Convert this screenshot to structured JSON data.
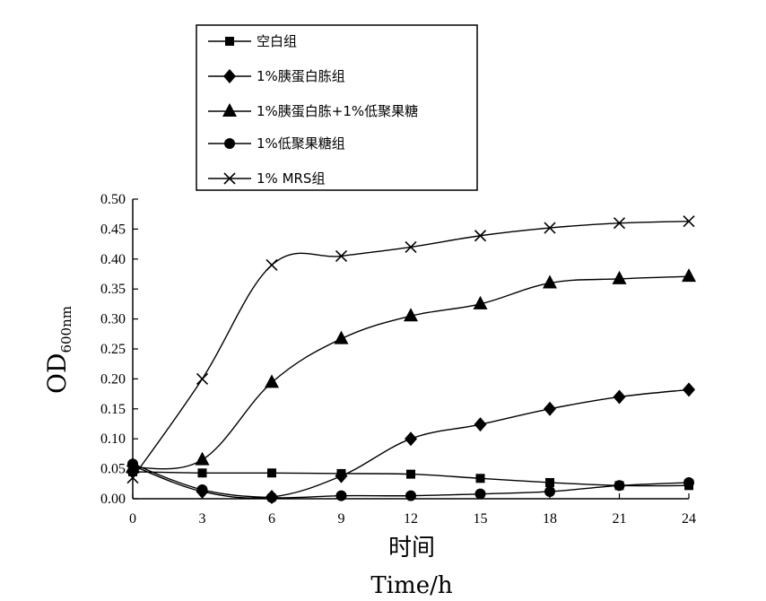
{
  "chart_data": {
    "type": "line",
    "xlabel_cn": "时间",
    "xlabel_en": "Time/h",
    "ylabel_main": "OD",
    "ylabel_sub": "600nm",
    "x": [
      0,
      3,
      6,
      9,
      12,
      15,
      18,
      21,
      24
    ],
    "x_tick_labels": [
      "0",
      "3",
      "6",
      "9",
      "12",
      "15",
      "18",
      "21",
      "24"
    ],
    "y_tick_labels": [
      "0.00",
      "0.05",
      "0.10",
      "0.15",
      "0.20",
      "0.25",
      "0.30",
      "0.35",
      "0.40",
      "0.45",
      "0.50"
    ],
    "ylim": [
      0,
      0.5
    ],
    "xlim": [
      0,
      24
    ],
    "grid": false,
    "legend_position": "top-left",
    "series": [
      {
        "name": "空白组",
        "marker": "square",
        "x": [
          0,
          3,
          6,
          9,
          12,
          15,
          18,
          21,
          24
        ],
        "values": [
          0.045,
          0.043,
          0.043,
          0.042,
          0.041,
          0.034,
          0.027,
          0.022,
          0.022
        ]
      },
      {
        "name": "1%胰蛋白胨组",
        "marker": "diamond",
        "x": [
          0,
          3,
          6,
          9,
          12,
          15,
          18,
          21,
          24
        ],
        "values": [
          0.055,
          0.012,
          0.003,
          0.038,
          0.1,
          0.124,
          0.15,
          0.17,
          0.182
        ]
      },
      {
        "name": "1%胰蛋白胨+1%低聚果糖",
        "marker": "triangle",
        "x": [
          0,
          3,
          6,
          9,
          12,
          15,
          18,
          21,
          24
        ],
        "values": [
          0.052,
          0.065,
          0.194,
          0.267,
          0.305,
          0.325,
          0.36,
          0.367,
          0.371
        ]
      },
      {
        "name": "1%低聚果糖组",
        "marker": "circle",
        "x": [
          0,
          3,
          6,
          9,
          12,
          15,
          18,
          21,
          24
        ],
        "values": [
          0.058,
          0.015,
          0.002,
          0.005,
          0.005,
          0.008,
          0.012,
          0.022,
          0.027
        ]
      },
      {
        "name": "1% MRS组",
        "marker": "x",
        "x": [
          0,
          3,
          6,
          9,
          12,
          15,
          18,
          21,
          24
        ],
        "values": [
          0.035,
          0.2,
          0.39,
          0.405,
          0.42,
          0.439,
          0.452,
          0.46,
          0.463
        ]
      }
    ]
  }
}
